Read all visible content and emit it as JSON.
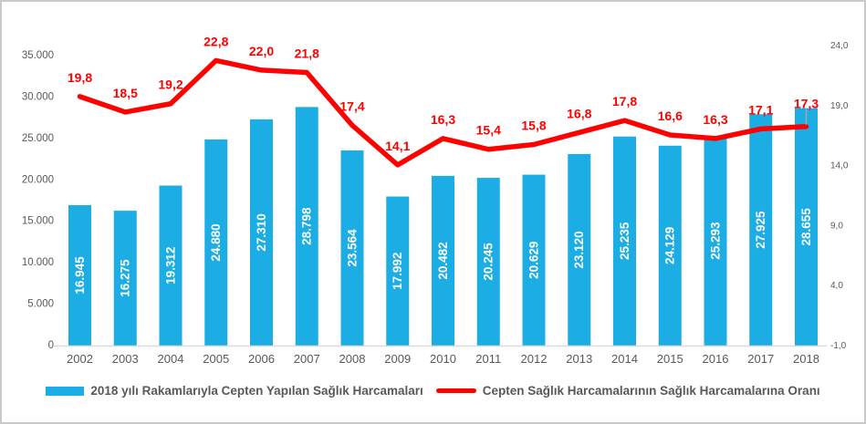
{
  "chart_data": {
    "type": "combo-bar-line",
    "title": "",
    "categories": [
      "2002",
      "2003",
      "2004",
      "2005",
      "2006",
      "2007",
      "2008",
      "2009",
      "2010",
      "2011",
      "2012",
      "2013",
      "2014",
      "2015",
      "2016",
      "2017",
      "2018"
    ],
    "series": [
      {
        "name": "2018 yılı Rakamlarıyla Cepten Yapılan Sağlık Harcamaları",
        "type": "bar",
        "axis": "left",
        "color": "#1CADE4",
        "values": [
          16945,
          16275,
          19312,
          24880,
          27310,
          28798,
          23564,
          17992,
          20482,
          20245,
          20629,
          23120,
          25235,
          24129,
          25293,
          27925,
          28655
        ],
        "labels": [
          "16.945",
          "16.275",
          "19.312",
          "24.880",
          "27.310",
          "28.798",
          "23.564",
          "17.992",
          "20.482",
          "20.245",
          "20.629",
          "23.120",
          "25.235",
          "24.129",
          "25.293",
          "27.925",
          "28.655"
        ]
      },
      {
        "name": "Cepten Sağlık Harcamalarının Sağlık Harcamalarına Oranı",
        "type": "line",
        "axis": "right",
        "color": "#FF0000",
        "values": [
          19.8,
          18.5,
          19.2,
          22.8,
          22.0,
          21.8,
          17.4,
          14.1,
          16.3,
          15.4,
          15.8,
          16.8,
          17.8,
          16.6,
          16.3,
          17.1,
          17.3
        ],
        "labels": [
          "19,8",
          "18,5",
          "19,2",
          "22,8",
          "22,0",
          "21,8",
          "17,4",
          "14,1",
          "16,3",
          "15,4",
          "15,8",
          "16,8",
          "17,8",
          "16,6",
          "16,3",
          "17,1",
          "17,3"
        ]
      }
    ],
    "left_axis": {
      "min": 0,
      "max": 35000,
      "ticks": [
        {
          "value": 0,
          "label": "0"
        },
        {
          "value": 5000,
          "label": "5.000"
        },
        {
          "value": 10000,
          "label": "10.000"
        },
        {
          "value": 15000,
          "label": "15.000"
        },
        {
          "value": 20000,
          "label": "20.000"
        },
        {
          "value": 25000,
          "label": "25.000"
        },
        {
          "value": 30000,
          "label": "30.000"
        },
        {
          "value": 35000,
          "label": "35.000"
        }
      ]
    },
    "right_axis": {
      "min": -1,
      "max": 24,
      "ticks": [
        {
          "value": -1,
          "label": "-1,0"
        },
        {
          "value": 4,
          "label": "4,0"
        },
        {
          "value": 9,
          "label": "9,0"
        },
        {
          "value": 14,
          "label": "14,0"
        },
        {
          "value": 19,
          "label": "19,0"
        },
        {
          "value": 24,
          "label": "24,0"
        }
      ]
    },
    "legend_position": "bottom",
    "grid": false,
    "colors": {
      "bar": "#1CADE4",
      "line": "#FF0000",
      "bar_label_text": "#FFFFFF",
      "line_label_text": "#FF0000",
      "axis_text": "#595959",
      "axis_line": "#D9D9D9",
      "leader_line": "#A6A6A6"
    }
  }
}
